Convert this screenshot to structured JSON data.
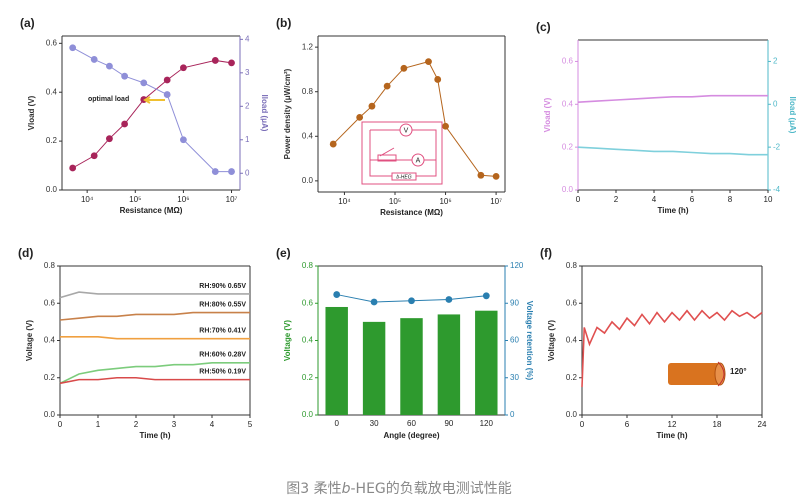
{
  "chart_data": [
    {
      "type": "line",
      "panel_label": "(a)",
      "xlabel": "Resistance (MΩ)",
      "ylabel": "Vload (V)",
      "y2label": "Iload (μA)",
      "annotation": "optimal load",
      "xscale": "log",
      "xlim": [
        3000,
        15000000
      ],
      "xticks": [
        {
          "value": 10000,
          "label": "10⁴"
        },
        {
          "value": 100000,
          "label": "10⁵"
        },
        {
          "value": 1000000,
          "label": "10⁶"
        },
        {
          "value": 10000000,
          "label": "10⁷"
        }
      ],
      "ylim": [
        0,
        0.63
      ],
      "yticks": [
        {
          "value": 0,
          "label": "0.0"
        },
        0.2,
        0.4,
        0.6
      ],
      "y2lim": [
        -0.5,
        4.1
      ],
      "y2ticks": [
        0,
        1,
        2,
        3,
        4
      ],
      "y2color": "#7b6fb8",
      "x": [
        5000,
        14000,
        29000,
        60000,
        150000,
        460000,
        1000000,
        4600000,
        10000000
      ],
      "series": [
        {
          "color": "#a8245a",
          "marker": true,
          "values": [
            0.09,
            0.14,
            0.21,
            0.27,
            0.37,
            0.45,
            0.5,
            0.53,
            0.52
          ]
        },
        {
          "color": "#8f8fd8",
          "marker": true,
          "axis": "y2",
          "values": [
            3.75,
            3.4,
            3.2,
            2.9,
            2.7,
            2.35,
            1.0,
            0.05,
            0.05
          ]
        }
      ]
    },
    {
      "type": "line",
      "panel_label": "(b)",
      "xlabel": "Resistance (MΩ)",
      "ylabel": "Power density (μW/cm²)",
      "inset": [
        "V",
        "A",
        "b-HEG"
      ],
      "xscale": "log",
      "xlim": [
        3000,
        15000000
      ],
      "xticks": [
        {
          "value": 10000,
          "label": "10⁴"
        },
        {
          "value": 100000,
          "label": "10⁵"
        },
        {
          "value": 1000000,
          "label": "10⁶"
        },
        {
          "value": 10000000,
          "label": "10⁷"
        }
      ],
      "ylim": [
        -0.1,
        1.3
      ],
      "yticks": [
        {
          "value": 0,
          "label": "0.0"
        },
        0.4,
        0.8,
        1.2
      ],
      "x": [
        6000,
        20000,
        35000,
        70000,
        150000,
        460000,
        700000,
        1000000,
        5000000,
        10000000
      ],
      "series": [
        {
          "color": "#b5651d",
          "marker": true,
          "values": [
            0.33,
            0.57,
            0.67,
            0.85,
            1.01,
            1.07,
            0.91,
            0.49,
            0.05,
            0.04
          ]
        }
      ]
    },
    {
      "type": "line",
      "panel_label": "(c)",
      "xlabel": "Time (h)",
      "ylabel": "Vload (V)",
      "y2label": "Iload (μA)",
      "ycolor": "#d58ce0",
      "y2color": "#4fb8c8",
      "xlim": [
        0,
        10
      ],
      "xticks": [
        0,
        2,
        4,
        6,
        8,
        10
      ],
      "ylim": [
        0,
        0.7
      ],
      "yticks": [
        {
          "value": 0,
          "label": "0.0"
        },
        0.2,
        0.4,
        0.6
      ],
      "y2lim": [
        -4,
        3
      ],
      "y2ticks": [
        -4,
        -2,
        0,
        2
      ],
      "x": [
        0,
        1,
        2,
        3,
        4,
        5,
        6,
        7,
        8,
        9,
        10
      ],
      "series": [
        {
          "color": "#d58ce0",
          "values": [
            0.41,
            0.415,
            0.42,
            0.425,
            0.43,
            0.435,
            0.435,
            0.44,
            0.44,
            0.44,
            0.44
          ]
        },
        {
          "color": "#7fd0dc",
          "axis": "y2",
          "values": [
            -2.0,
            -2.05,
            -2.1,
            -2.15,
            -2.2,
            -2.2,
            -2.25,
            -2.3,
            -2.3,
            -2.35,
            -2.35
          ]
        }
      ]
    },
    {
      "type": "line",
      "panel_label": "(d)",
      "xlabel": "Time (h)",
      "ylabel": "Voltage (V)",
      "xlim": [
        0,
        5
      ],
      "xticks": [
        0,
        1,
        2,
        3,
        4,
        5
      ],
      "ylim": [
        0,
        0.8
      ],
      "yticks": [
        {
          "value": 0,
          "label": "0.0"
        },
        0.2,
        0.4,
        0.6,
        0.8
      ],
      "x": [
        0,
        0.5,
        1,
        1.5,
        2,
        2.5,
        3,
        3.5,
        4,
        4.5,
        5
      ],
      "series": [
        {
          "name": "RH:90%  0.65V",
          "color": "#a8a8a8",
          "values": [
            0.63,
            0.66,
            0.65,
            0.65,
            0.65,
            0.65,
            0.65,
            0.65,
            0.65,
            0.65,
            0.65
          ]
        },
        {
          "name": "RH:80%  0.55V",
          "color": "#c8814a",
          "values": [
            0.51,
            0.52,
            0.53,
            0.53,
            0.54,
            0.54,
            0.54,
            0.55,
            0.55,
            0.55,
            0.55
          ]
        },
        {
          "name": "RH:70%  0.41V",
          "color": "#f0a040",
          "values": [
            0.42,
            0.42,
            0.42,
            0.41,
            0.41,
            0.41,
            0.41,
            0.41,
            0.41,
            0.41,
            0.41
          ]
        },
        {
          "name": "RH:60%  0.28V",
          "color": "#7ccc7c",
          "values": [
            0.17,
            0.22,
            0.24,
            0.25,
            0.26,
            0.26,
            0.27,
            0.27,
            0.28,
            0.28,
            0.28
          ]
        },
        {
          "name": "RH:50%  0.19V",
          "color": "#d84a4a",
          "values": [
            0.17,
            0.19,
            0.19,
            0.2,
            0.2,
            0.19,
            0.19,
            0.19,
            0.19,
            0.19,
            0.19
          ]
        }
      ]
    },
    {
      "type": "bar",
      "panel_label": "(e)",
      "xlabel": "Angle (degree)",
      "ylabel": "Voltage (V)",
      "y2label": "Voltage retention (%)",
      "ycolor": "#2e9a2e",
      "y2color": "#2a7fb0",
      "categories": [
        "0",
        "30",
        "60",
        "90",
        "120"
      ],
      "ylim": [
        0,
        0.8
      ],
      "yticks": [
        {
          "value": 0,
          "label": "0.0"
        },
        0.2,
        0.4,
        0.6,
        0.8
      ],
      "y2lim": [
        0,
        120
      ],
      "y2ticks": [
        0,
        30,
        60,
        90,
        120
      ],
      "series": [
        {
          "color": "#2e9a2e",
          "values": [
            0.58,
            0.5,
            0.52,
            0.54,
            0.56
          ]
        },
        {
          "type": "line",
          "color": "#2a7fb0",
          "marker": true,
          "axis": "y2",
          "values": [
            97,
            91,
            92,
            93,
            96
          ]
        }
      ]
    },
    {
      "type": "line",
      "panel_label": "(f)",
      "xlabel": "Time (h)",
      "ylabel": "Voltage (V)",
      "inset": [
        "120°"
      ],
      "xlim": [
        0,
        24
      ],
      "xticks": [
        0,
        6,
        12,
        18,
        24
      ],
      "ylim": [
        0,
        0.8
      ],
      "yticks": [
        {
          "value": 0,
          "label": "0.0"
        },
        0.2,
        0.4,
        0.6,
        0.8
      ],
      "x": [
        0,
        0.3,
        1,
        2,
        3,
        4,
        5,
        6,
        7,
        8,
        9,
        10,
        11,
        12,
        13,
        14,
        15,
        16,
        17,
        18,
        19,
        20,
        21,
        22,
        23,
        24
      ],
      "series": [
        {
          "color": "#e05050",
          "values": [
            0.15,
            0.47,
            0.38,
            0.47,
            0.44,
            0.5,
            0.46,
            0.52,
            0.48,
            0.54,
            0.49,
            0.55,
            0.5,
            0.55,
            0.51,
            0.56,
            0.51,
            0.56,
            0.52,
            0.55,
            0.51,
            0.56,
            0.53,
            0.55,
            0.52,
            0.55
          ]
        }
      ]
    }
  ],
  "caption": {
    "prefix": "图3 柔性",
    "italic": "b",
    "suffix": "-HEG的负载放电测试性能"
  }
}
